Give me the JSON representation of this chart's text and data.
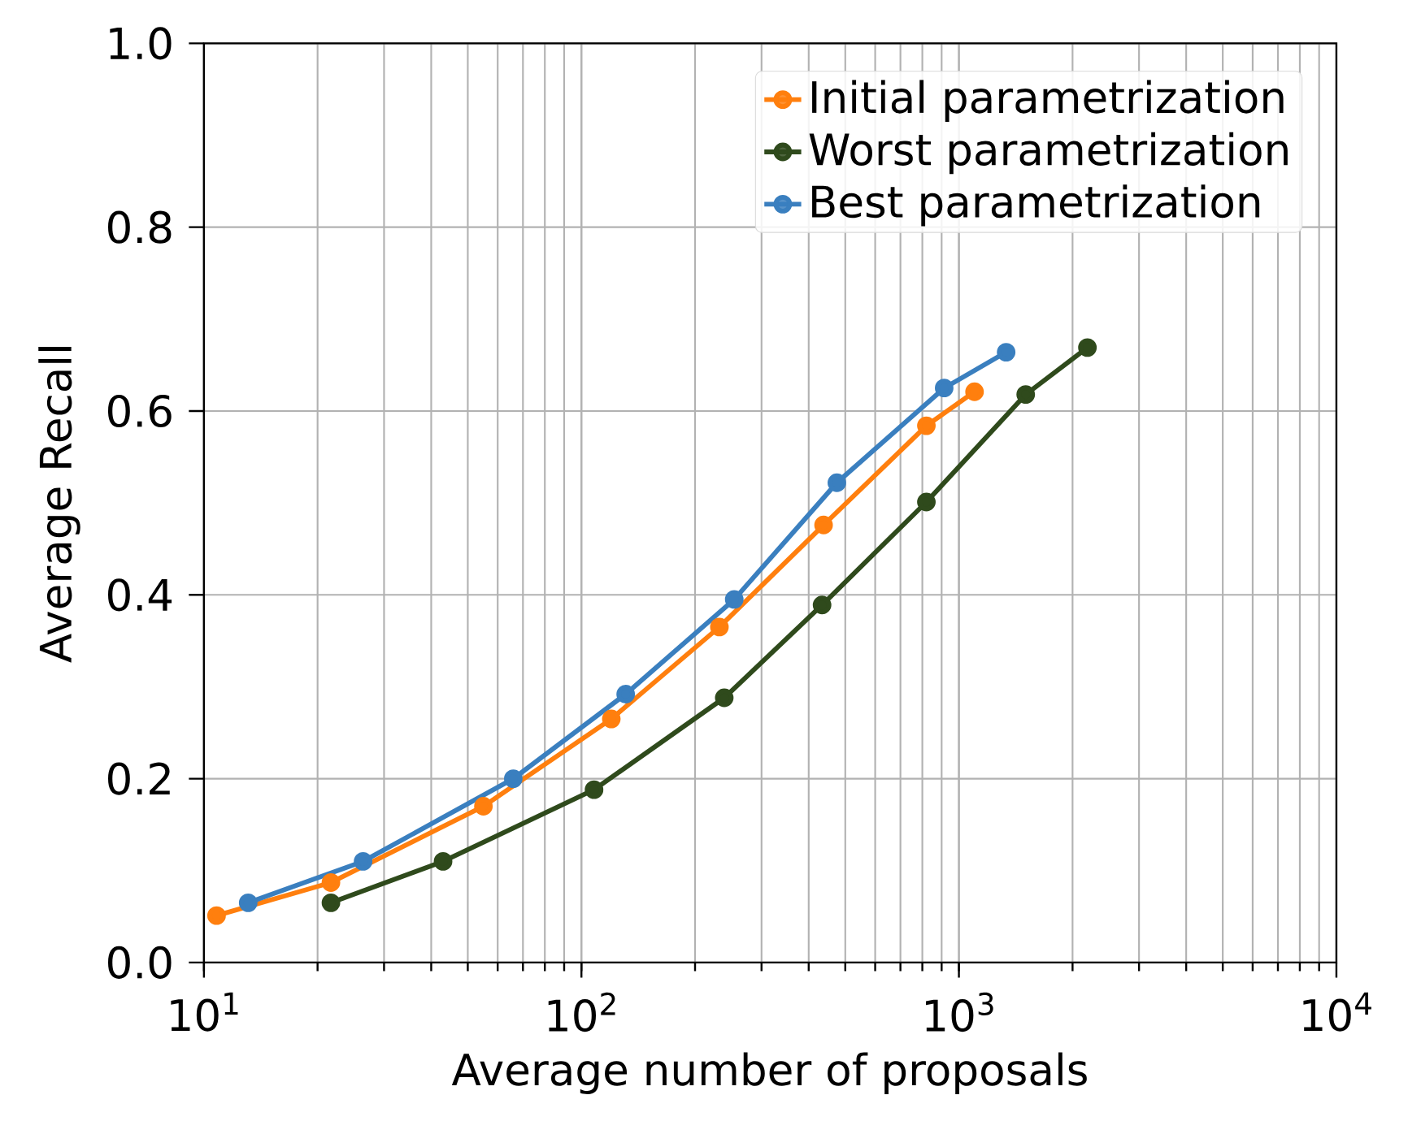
{
  "chart_data": {
    "type": "line",
    "xlabel": "Average number of proposals",
    "ylabel": "Average Recall",
    "log": "x",
    "xlim": [
      10,
      10000
    ],
    "ylim": [
      0,
      1
    ],
    "xticks": [
      {
        "value": 10,
        "label": "10$^{1}$"
      },
      {
        "value": 100,
        "label": "10$^{2}$"
      },
      {
        "value": 1000,
        "label": "10$^{3}$"
      },
      {
        "value": 10000,
        "label": "10$^{4}$"
      }
    ],
    "yticks": [
      {
        "value": 0,
        "label": "0.0"
      },
      {
        "value": 0.2,
        "label": "0.2"
      },
      {
        "value": 0.4,
        "label": "0.4"
      },
      {
        "value": 0.6,
        "label": "0.6"
      },
      {
        "value": 0.8,
        "label": "0.8"
      },
      {
        "value": 1,
        "label": "1.0"
      }
    ],
    "grid": true,
    "legend": "top right",
    "marker": "circle",
    "line_style": "solid",
    "series": [
      {
        "name": "Initial parametrization",
        "color": "#ff7f0e",
        "x": [
          10.8,
          21.7,
          55,
          120,
          232,
          438,
          820,
          1100
        ],
        "values": [
          0.051,
          0.087,
          0.17,
          0.265,
          0.365,
          0.476,
          0.584,
          0.621
        ]
      },
      {
        "name": "Worst parametrization",
        "color": "#2f4a1c",
        "x": [
          21.7,
          43,
          108,
          239,
          434,
          820,
          1503,
          2190
        ],
        "values": [
          0.065,
          0.11,
          0.188,
          0.288,
          0.389,
          0.501,
          0.618,
          0.669
        ]
      },
      {
        "name": "Best parametrization",
        "color": "#3a7fbf",
        "x": [
          13.1,
          26.4,
          66,
          131,
          254,
          475,
          914,
          1334
        ],
        "values": [
          0.065,
          0.11,
          0.2,
          0.292,
          0.395,
          0.522,
          0.625,
          0.664
        ]
      }
    ]
  }
}
